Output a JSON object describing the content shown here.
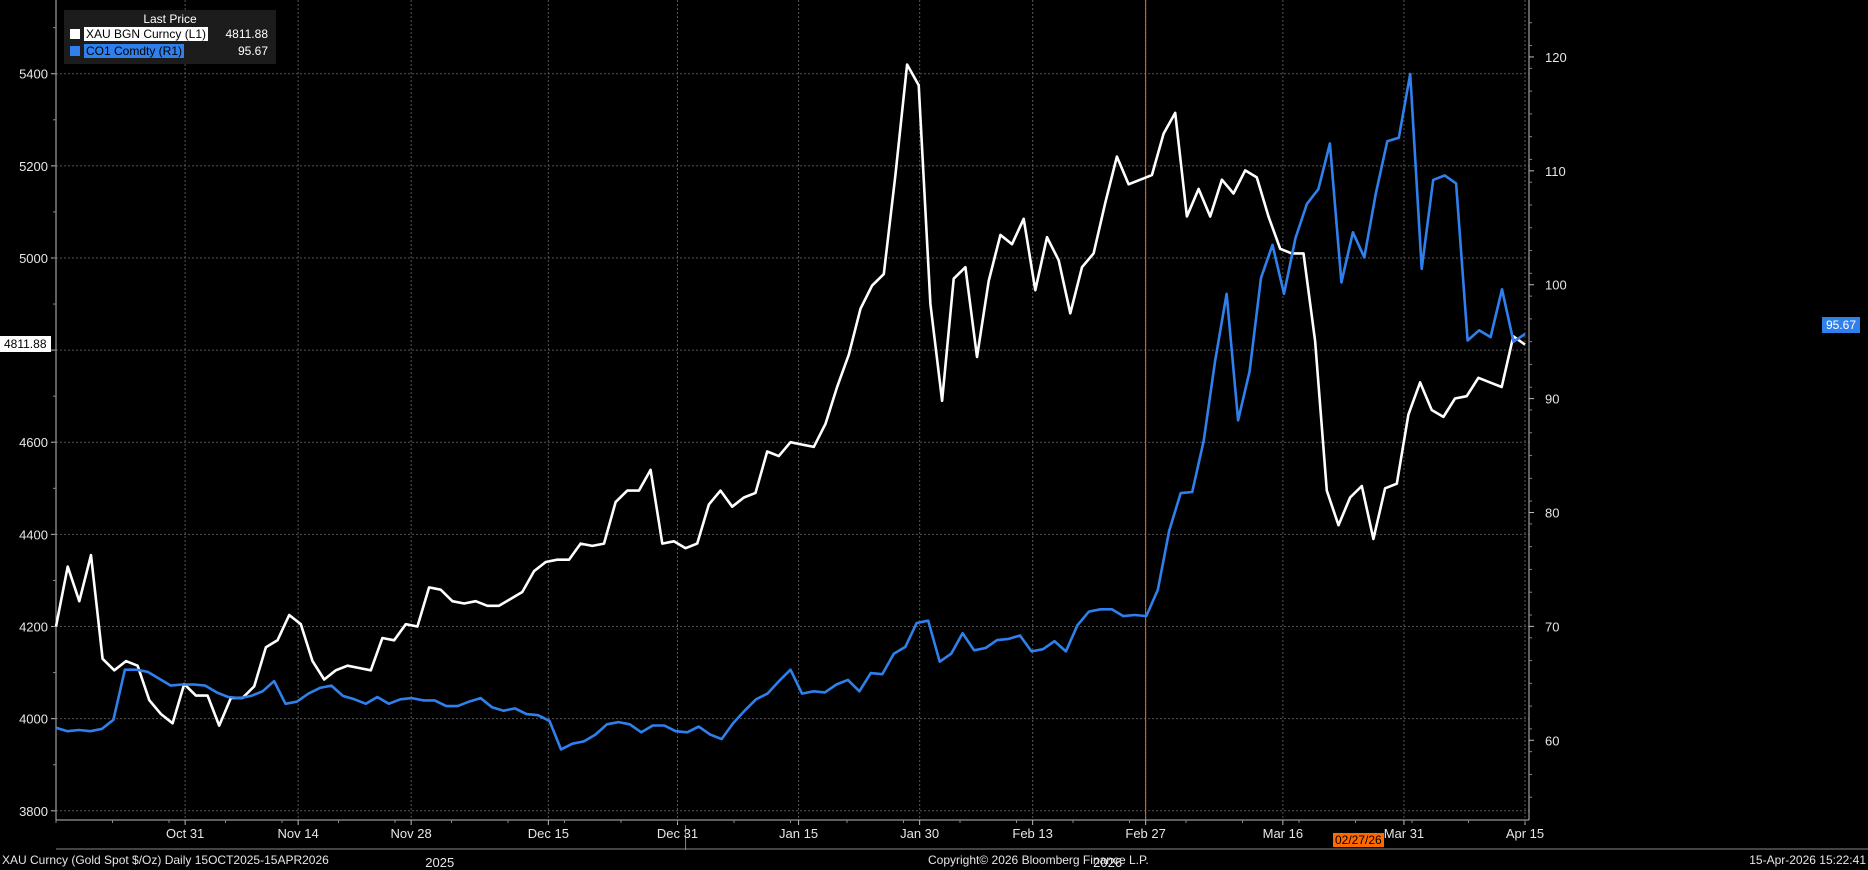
{
  "chart_data": {
    "type": "line",
    "legend_header": "Last Price",
    "legend_position": "top-left",
    "grid": true,
    "series": [
      {
        "name": "XAU BGN Curncy  (L1)",
        "last": "4811.88",
        "axis": "left",
        "color": "#ffffff",
        "values": [
          4200,
          4330,
          4255,
          4355,
          4130,
          4105,
          4125,
          4115,
          4040,
          4010,
          3990,
          4075,
          4050,
          4050,
          3985,
          4045,
          4045,
          4070,
          4155,
          4170,
          4225,
          4205,
          4125,
          4085,
          4105,
          4115,
          4110,
          4105,
          4175,
          4170,
          4205,
          4200,
          4285,
          4280,
          4255,
          4250,
          4255,
          4245,
          4245,
          4260,
          4275,
          4320,
          4340,
          4345,
          4345,
          4380,
          4375,
          4380,
          4470,
          4495,
          4495,
          4540,
          4380,
          4385,
          4370,
          4380,
          4465,
          4495,
          4460,
          4480,
          4490,
          4580,
          4570,
          4600,
          4595,
          4590,
          4640,
          4720,
          4790,
          4890,
          4940,
          4965,
          5180,
          5420,
          5375,
          4900,
          4690,
          4955,
          4980,
          4785,
          4950,
          5050,
          5030,
          5085,
          4930,
          5045,
          4995,
          4880,
          4980,
          5010,
          5120,
          5220,
          5160,
          5170,
          5180,
          5270,
          5315,
          5090,
          5150,
          5090,
          5170,
          5140,
          5190,
          5175,
          5090,
          5020,
          5010,
          5010,
          4820,
          4495,
          4420,
          4480,
          4505,
          4390,
          4500,
          4510,
          4660,
          4730,
          4670,
          4655,
          4695,
          4700,
          4740,
          4730,
          4720,
          4830,
          4811.88
        ]
      },
      {
        "name": "CO1 Comdty  (R1)",
        "last": "95.67",
        "axis": "right",
        "color": "#2f80ed",
        "values": [
          61.1,
          60.8,
          60.9,
          60.8,
          61,
          61.8,
          66.2,
          66.2,
          66,
          65.4,
          64.8,
          64.9,
          64.9,
          64.8,
          64.2,
          63.8,
          63.7,
          63.9,
          64.3,
          65.2,
          63.2,
          63.4,
          64.1,
          64.6,
          64.8,
          63.9,
          63.6,
          63.2,
          63.8,
          63.2,
          63.6,
          63.7,
          63.5,
          63.5,
          63,
          63,
          63.4,
          63.7,
          62.9,
          62.6,
          62.8,
          62.3,
          62.2,
          61.7,
          59.2,
          59.7,
          59.9,
          60.5,
          61.4,
          61.6,
          61.4,
          60.7,
          61.3,
          61.3,
          60.8,
          60.7,
          61.2,
          60.5,
          60.1,
          61.5,
          62.6,
          63.6,
          64.1,
          65.2,
          66.2,
          64.1,
          64.3,
          64.2,
          64.9,
          65.3,
          64.3,
          65.9,
          65.8,
          67.6,
          68.2,
          70.3,
          70.5,
          66.9,
          67.6,
          69.4,
          67.9,
          68.1,
          68.8,
          68.9,
          69.2,
          67.8,
          68,
          68.7,
          67.8,
          70.1,
          71.3,
          71.5,
          71.5,
          70.9,
          71,
          70.9,
          73.2,
          78.4,
          81.7,
          81.8,
          86.3,
          93.3,
          99.2,
          88.1,
          92.4,
          100.6,
          103.5,
          99.2,
          104.1,
          107.1,
          108.4,
          112.4,
          100.2,
          104.6,
          102.4,
          108,
          112.6,
          112.9,
          118.5,
          101.4,
          109.2,
          109.6,
          108.9,
          95.1,
          96,
          95.4,
          99.6,
          95,
          95.67
        ]
      }
    ],
    "x_start": "2025-10-15",
    "x_end": "2026-04-15",
    "x_ticks": [
      "Oct 31",
      "Nov 14",
      "Nov 28",
      "Dec 15",
      "Dec 31",
      "Jan 15",
      "Jan 30",
      "Feb 13",
      "Feb 27",
      "Mar 16",
      "Mar 31",
      "Apr 15"
    ],
    "year_labels": [
      "2025",
      "2026"
    ],
    "left_axis": {
      "ylim": [
        3780,
        5560
      ],
      "ticks": [
        3800,
        4000,
        4200,
        4400,
        4600,
        4800,
        5000,
        5200,
        5400
      ],
      "tick_labels": [
        "3800",
        "4000",
        "4200",
        "4400",
        "4600",
        "",
        "5000",
        "5200",
        "5400"
      ]
    },
    "right_axis": {
      "ylim": [
        53,
        125
      ],
      "ticks": [
        60,
        70,
        80,
        90,
        100,
        110,
        120
      ],
      "tick_labels": [
        "60",
        "70",
        "80",
        "90",
        "100",
        "110",
        "120"
      ]
    },
    "marker_line": {
      "label": "02/27/26",
      "color": "#ff6a00"
    },
    "last_flags": {
      "left": "4811.88",
      "right": "95.67"
    }
  },
  "footer": {
    "left": "XAU Curncy (Gold Spot  $/Oz) Daily 15OCT2025-15APR2026",
    "center": "Copyright© 2026 Bloomberg Finance L.P.",
    "right": "15-Apr-2026 15:22:41"
  }
}
